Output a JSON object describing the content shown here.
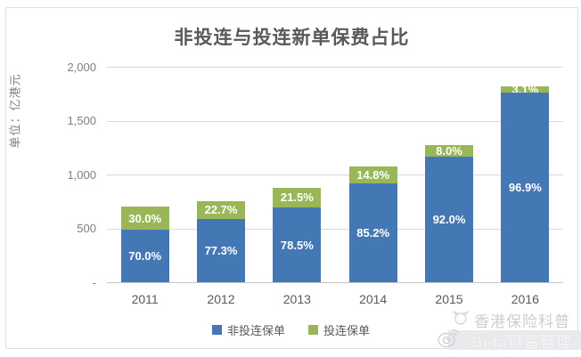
{
  "title": "非投连与投连新单保费占比",
  "y_axis": {
    "unit_label": "单位：亿港元",
    "ticks": [
      "2,000",
      "1,500",
      "1,000",
      "500",
      "-"
    ]
  },
  "legend": [
    {
      "label": "非投连保单",
      "color": "#4478b4"
    },
    {
      "label": "投连保单",
      "color": "#9ab757"
    }
  ],
  "watermark": {
    "line1": "香港保险科普",
    "line2": "Beta财富管理"
  },
  "colors": {
    "non_linked_blue": "#4478b4",
    "linked_green": "#9ab757",
    "gridline": "#d9d9d9",
    "title_text": "#595959",
    "axis_text": "#7f7f7f"
  },
  "chart_data": {
    "type": "bar",
    "stacked": true,
    "title": "非投连与投连新单保费占比",
    "ylabel": "单位：亿港元",
    "categories": [
      "2011",
      "2012",
      "2013",
      "2014",
      "2015",
      "2016"
    ],
    "series": [
      {
        "name": "非投连保单",
        "color": "#4478b4",
        "percent_labels": [
          "70.0%",
          "77.3%",
          "78.5%",
          "85.2%",
          "92.0%",
          "96.9%"
        ],
        "percents": [
          70.0,
          77.3,
          78.5,
          85.2,
          92.0,
          96.9
        ],
        "values": [
          490,
          584,
          691,
          916,
          1168,
          1764
        ]
      },
      {
        "name": "投连保单",
        "color": "#9ab757",
        "percent_labels": [
          "30.0%",
          "22.7%",
          "21.5%",
          "14.8%",
          "8.0%",
          "3.1%"
        ],
        "percents": [
          30.0,
          22.7,
          21.5,
          14.8,
          8.0,
          3.1
        ],
        "values": [
          210,
          171,
          189,
          159,
          102,
          56
        ]
      }
    ],
    "totals_estimated": [
      700,
      755,
      880,
      1075,
      1270,
      1820
    ],
    "ylim": [
      0,
      2000
    ],
    "yticks": [
      2000,
      1500,
      1000,
      500,
      0
    ],
    "grid": true,
    "legend_position": "bottom"
  }
}
